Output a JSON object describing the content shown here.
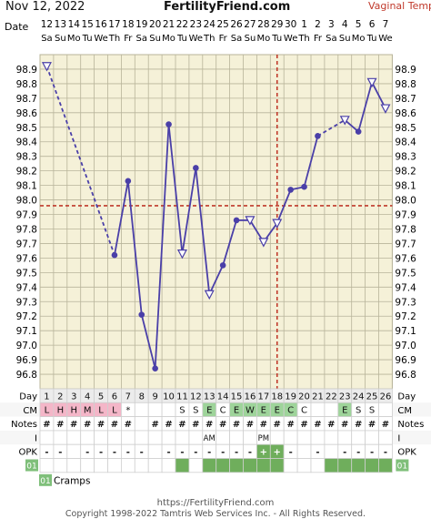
{
  "header": {
    "date": "Nov 12, 2022",
    "site": "FertilityFriend.com",
    "temp_method": "Vaginal Temp",
    "date_label": "Date"
  },
  "colors": {
    "grid_bg": "#f5f1d8",
    "grid_line": "#b8b49a",
    "line": "#4a3fa8",
    "coverline": "#c0392b",
    "ovulation": "#c0392b",
    "accent_title": "#c0392b",
    "cm_pink": "#f4b6c8",
    "cm_green": "#9ed49a",
    "opk_green": "#6fae5c",
    "cycle_green": "#7fbf7a"
  },
  "chart_data": {
    "type": "line",
    "title": "",
    "xlabel": "Day",
    "ylabel": "",
    "ylim": [
      96.7,
      99.0
    ],
    "yticks": [
      "98.9",
      "98.8",
      "98.7",
      "98.6",
      "98.5",
      "98.4",
      "98.3",
      "98.2",
      "98.1",
      "98.0",
      "97.9",
      "97.8",
      "97.7",
      "97.6",
      "97.5",
      "97.4",
      "97.3",
      "97.2",
      "97.1",
      "97.0",
      "96.9",
      "96.8"
    ],
    "dates": [
      "12",
      "13",
      "14",
      "15",
      "16",
      "17",
      "18",
      "19",
      "20",
      "21",
      "22",
      "23",
      "24",
      "25",
      "26",
      "27",
      "28",
      "29",
      "30",
      "1",
      "2",
      "3",
      "4",
      "5",
      "6",
      "7"
    ],
    "weekdays": [
      "Sa",
      "Su",
      "Mo",
      "Tu",
      "We",
      "Th",
      "Fr",
      "Sa",
      "Su",
      "Mo",
      "Tu",
      "We",
      "Th",
      "Fr",
      "Sa",
      "Su",
      "Mo",
      "Tu",
      "We",
      "Th",
      "Fr",
      "Sa",
      "Su",
      "Mo",
      "Tu",
      "We"
    ],
    "days": [
      "1",
      "2",
      "3",
      "4",
      "5",
      "6",
      "7",
      "8",
      "9",
      "10",
      "11",
      "12",
      "13",
      "14",
      "15",
      "16",
      "17",
      "18",
      "19",
      "20",
      "21",
      "22",
      "23",
      "24",
      "25",
      "26"
    ],
    "temps": [
      98.92,
      null,
      null,
      null,
      null,
      97.62,
      98.13,
      97.21,
      96.84,
      98.52,
      97.63,
      98.22,
      97.35,
      97.55,
      97.86,
      97.86,
      97.71,
      97.84,
      98.07,
      98.09,
      98.44,
      null,
      98.55,
      98.47,
      98.81,
      98.63
    ],
    "open_markers": [
      1,
      11,
      13,
      16,
      17,
      18,
      23,
      25,
      26
    ],
    "dashed_segments": [
      [
        1,
        6
      ],
      [
        21,
        23
      ]
    ],
    "coverline": 97.96,
    "ovulation_day": 18
  },
  "rows": {
    "day_label": "Day",
    "cm_label": "CM",
    "cm": [
      "L",
      "H",
      "H",
      "M",
      "L",
      "L",
      "*",
      "",
      "",
      "",
      "S",
      "S",
      "E",
      "C",
      "E",
      "W",
      "E",
      "E",
      "C",
      "C",
      "",
      "",
      "E",
      "S",
      "S",
      ""
    ],
    "cm_colors": [
      "pink",
      "pink",
      "pink",
      "pink",
      "pink",
      "pink",
      "",
      "",
      "",
      "",
      "",
      "",
      "green",
      "",
      "green",
      "green",
      "green",
      "green",
      "green",
      "",
      "",
      "",
      "green",
      "",
      "",
      ""
    ],
    "notes_label": "Notes",
    "notes": [
      "#",
      "#",
      "#",
      "#",
      "#",
      "#",
      "#",
      "",
      "#",
      "#",
      "#",
      "#",
      "#",
      "#",
      "#",
      "#",
      "#",
      "#",
      "#",
      "#",
      "#",
      "#",
      "#",
      "#",
      "#",
      "#"
    ],
    "i_label": "I",
    "intercourse": [
      "",
      "",
      "",
      "",
      "",
      "",
      "",
      "",
      "",
      "",
      "",
      "",
      "AM",
      "",
      "",
      "",
      "PM",
      "",
      "",
      "",
      "",
      "",
      "",
      "",
      "",
      ""
    ],
    "opk_label": "OPK",
    "opk": [
      "-",
      "-",
      "",
      "-",
      "-",
      "-",
      "-",
      "-",
      "",
      "-",
      "-",
      "-",
      "-",
      "-",
      "-",
      "-",
      "+",
      "+",
      "-",
      "",
      "-",
      "",
      "-",
      "-",
      "-",
      "-"
    ],
    "cycle_label": "01",
    "cycle_fill": [
      0,
      0,
      0,
      0,
      0,
      0,
      0,
      0,
      0,
      0,
      1,
      1,
      1,
      1,
      1,
      1,
      1,
      1,
      1,
      1,
      1,
      1,
      1,
      1,
      1,
      1
    ],
    "cycle_gaps": [
      12,
      19,
      20,
      21
    ],
    "symptom_tag": "01",
    "symptom": "Cramps"
  },
  "footer": {
    "url": "https://FertilityFriend.com",
    "copyright": "Copyright 1998-2022 Tamtris Web Services Inc. - All Rights Reserved."
  }
}
